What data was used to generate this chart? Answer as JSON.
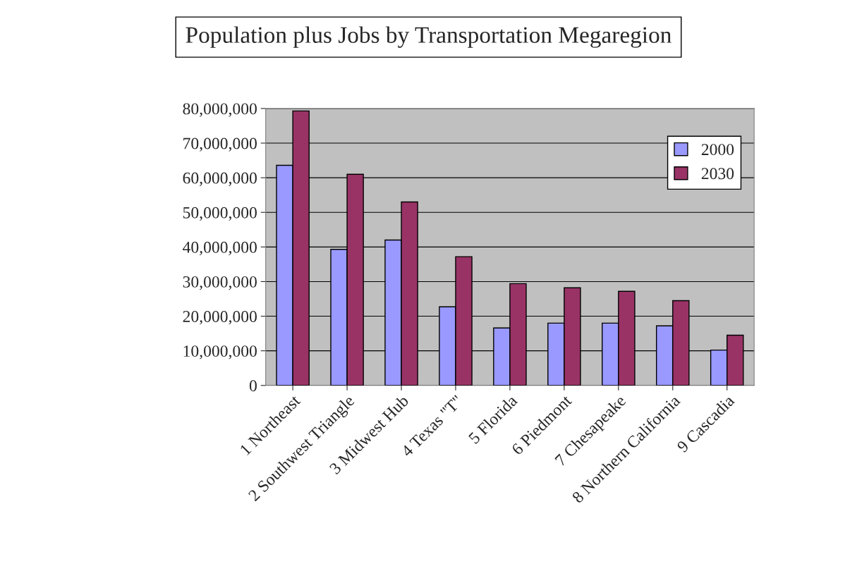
{
  "chart_data": {
    "type": "bar",
    "title": "Population plus Jobs by Transportation Megaregion",
    "categories": [
      "1 Northeast",
      "2 Southwest Triangle",
      "3 Midwest Hub",
      "4 Texas \"T\"",
      "5 Florida",
      "6 Piedmont",
      "7 Chesapeake",
      "8 Northern California",
      "9 Cascadia"
    ],
    "series": [
      {
        "name": "2000",
        "color": "#9999ff",
        "values": [
          63600000,
          39300000,
          42000000,
          22700000,
          16600000,
          18000000,
          18000000,
          17200000,
          10200000
        ]
      },
      {
        "name": "2030",
        "color": "#993366",
        "values": [
          79300000,
          61000000,
          53000000,
          37200000,
          29400000,
          28200000,
          27200000,
          24500000,
          14500000
        ]
      }
    ],
    "ylim": [
      0,
      80000000
    ],
    "yticks": [
      {
        "value": 0,
        "label": "0"
      },
      {
        "value": 10000000,
        "label": "10,000,000"
      },
      {
        "value": 20000000,
        "label": "20,000,000"
      },
      {
        "value": 30000000,
        "label": "30,000,000"
      },
      {
        "value": 40000000,
        "label": "40,000,000"
      },
      {
        "value": 50000000,
        "label": "50,000,000"
      },
      {
        "value": 60000000,
        "label": "60,000,000"
      },
      {
        "value": 70000000,
        "label": "70,000,000"
      },
      {
        "value": 80000000,
        "label": "80,000,000"
      }
    ],
    "grid": "y",
    "legend": "top right"
  }
}
